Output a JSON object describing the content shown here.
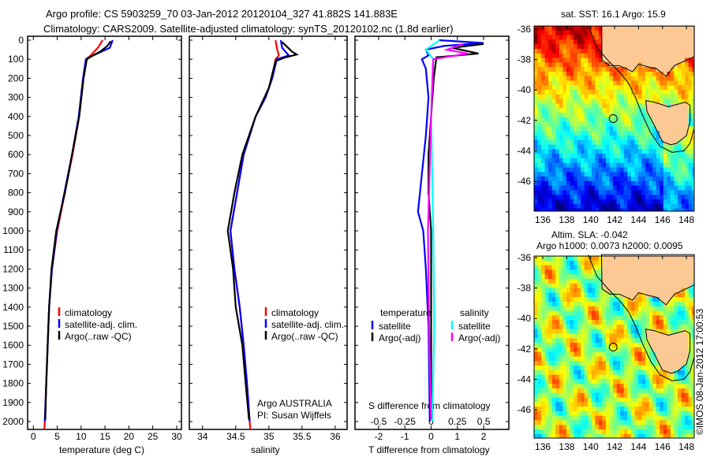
{
  "title": {
    "line1": "Argo profile: CS 5903259_70 03-Jan-2012 20120104_327 41.882S 141.883E",
    "line2": "Climatology: CARS2009. Satellite-adjusted climatology: synTS_20120102.nc (1.8d earlier)"
  },
  "chart_data": [
    {
      "type": "line",
      "name": "temperature-profile",
      "xlabel": "temperature (deg C)",
      "ylabel": "depth",
      "xticks": [
        0,
        5,
        10,
        15,
        20,
        25,
        30
      ],
      "yticks": [
        0,
        100,
        200,
        300,
        400,
        500,
        600,
        700,
        800,
        900,
        1000,
        1100,
        1200,
        1300,
        1400,
        1500,
        1600,
        1700,
        1800,
        1900,
        2000
      ],
      "ylim": [
        2100,
        -20
      ],
      "xlim": [
        -1.2,
        31
      ],
      "legend": [
        "climatology",
        "satellite-adj. clim.",
        "Argo(..raw -QC)"
      ],
      "series": [
        {
          "name": "climatology",
          "color": "#ff0000",
          "points": [
            [
              14.5,
              0
            ],
            [
              13.5,
              40
            ],
            [
              12,
              80
            ],
            [
              11,
              100
            ],
            [
              10.5,
              200
            ],
            [
              9.6,
              400
            ],
            [
              8.2,
              600
            ],
            [
              6.6,
              800
            ],
            [
              5,
              1000
            ],
            [
              3.9,
              1200
            ],
            [
              3.3,
              1400
            ],
            [
              3,
              1600
            ],
            [
              2.7,
              1800
            ],
            [
              2.4,
              2000
            ],
            [
              2.3,
              2060
            ]
          ]
        },
        {
          "name": "satellite-adj. clim.",
          "color": "#0000ff",
          "points": [
            [
              16.6,
              0
            ],
            [
              16,
              40
            ],
            [
              12.5,
              80
            ],
            [
              11,
              100
            ],
            [
              10.4,
              200
            ],
            [
              9.5,
              400
            ],
            [
              8.1,
              600
            ],
            [
              6.5,
              800
            ],
            [
              4.9,
              1000
            ],
            [
              3.9,
              1200
            ],
            [
              3.3,
              1400
            ],
            [
              3,
              1600
            ],
            [
              2.7,
              1800
            ],
            [
              2.4,
              2000
            ]
          ]
        },
        {
          "name": "Argo(..raw -QC)",
          "color": "#000000",
          "points": [
            [
              16.2,
              5
            ],
            [
              15.5,
              30
            ],
            [
              14,
              60
            ],
            [
              12.5,
              80
            ],
            [
              11.2,
              100
            ],
            [
              10.5,
              200
            ],
            [
              9.6,
              400
            ],
            [
              8.1,
              600
            ],
            [
              6.6,
              800
            ],
            [
              4.8,
              1000
            ],
            [
              3.8,
              1200
            ],
            [
              3.3,
              1400
            ],
            [
              3,
              1600
            ],
            [
              2.7,
              1800
            ],
            [
              2.5,
              1990
            ]
          ]
        }
      ]
    },
    {
      "type": "line",
      "name": "salinity-profile",
      "xlabel": "salinity",
      "xticks": [
        34,
        34.5,
        35,
        35.5,
        36
      ],
      "ylim": [
        2100,
        -20
      ],
      "xlim": [
        33.8,
        36.18
      ],
      "legend": [
        "climatology",
        "satellite-adj. clim.",
        "Argo(..raw -QC)"
      ],
      "annotation": [
        "Argo AUSTRALIA",
        "PI: Susan Wijffels"
      ],
      "series": [
        {
          "name": "climatology",
          "color": "#ff0000",
          "points": [
            [
              35.1,
              0
            ],
            [
              35.12,
              40
            ],
            [
              35.15,
              80
            ],
            [
              35.1,
              100
            ],
            [
              35.05,
              200
            ],
            [
              34.95,
              300
            ],
            [
              34.8,
              400
            ],
            [
              34.62,
              600
            ],
            [
              34.52,
              800
            ],
            [
              34.42,
              1000
            ],
            [
              34.48,
              1200
            ],
            [
              34.56,
              1400
            ],
            [
              34.62,
              1600
            ],
            [
              34.67,
              1800
            ],
            [
              34.71,
              2000
            ],
            [
              34.72,
              2060
            ]
          ]
        },
        {
          "name": "satellite-adj. clim.",
          "color": "#0000ff",
          "points": [
            [
              35.18,
              0
            ],
            [
              35.2,
              40
            ],
            [
              35.3,
              80
            ],
            [
              35.12,
              100
            ],
            [
              35.05,
              200
            ],
            [
              34.95,
              300
            ],
            [
              34.8,
              400
            ],
            [
              34.62,
              600
            ],
            [
              34.52,
              800
            ],
            [
              34.42,
              1000
            ],
            [
              34.48,
              1200
            ],
            [
              34.56,
              1400
            ],
            [
              34.62,
              1600
            ],
            [
              34.67,
              1800
            ],
            [
              34.71,
              2000
            ]
          ]
        },
        {
          "name": "Argo(..raw -QC)",
          "color": "#000000",
          "points": [
            [
              35.2,
              10
            ],
            [
              35.35,
              60
            ],
            [
              35.42,
              75
            ],
            [
              35.25,
              90
            ],
            [
              35.1,
              110
            ],
            [
              35.0,
              250
            ],
            [
              34.8,
              400
            ],
            [
              34.6,
              600
            ],
            [
              34.48,
              800
            ],
            [
              34.38,
              1000
            ],
            [
              34.46,
              1200
            ],
            [
              34.5,
              1400
            ],
            [
              34.6,
              1600
            ],
            [
              34.65,
              1800
            ],
            [
              34.7,
              1990
            ]
          ]
        }
      ]
    },
    {
      "type": "line",
      "name": "difference-profile",
      "xlabel": "T difference from climatology",
      "x2label": "S difference from climatology",
      "xticks": [
        -2,
        -1,
        0,
        1,
        2
      ],
      "x2ticks": [
        "-0.5",
        "-0.25",
        "0",
        "0.25",
        "0.5"
      ],
      "xlim": [
        -2.9,
        2.96
      ],
      "x2lim": [
        -0.725,
        0.74
      ],
      "legend": {
        "temperature": "temperature",
        "salinity": "salinity",
        "items": [
          "satellite",
          "Argo(-adj)",
          "satellite",
          "Argo(-adj)"
        ]
      },
      "series": [
        {
          "name": "T satellite",
          "units": "T",
          "color": "#0000ff",
          "points": [
            [
              0.3,
              0
            ],
            [
              2,
              15
            ],
            [
              0.5,
              30
            ],
            [
              -0.2,
              50
            ],
            [
              -0.1,
              80
            ],
            [
              -0.35,
              100
            ],
            [
              -0.2,
              150
            ],
            [
              -0.1,
              300
            ],
            [
              -0.2,
              500
            ],
            [
              -0.35,
              700
            ],
            [
              -0.5,
              900
            ],
            [
              -0.3,
              1000
            ],
            [
              -0.2,
              1200
            ],
            [
              -0.1,
              1500
            ],
            [
              -0.05,
              2000
            ]
          ]
        },
        {
          "name": "T Argo(-adj)",
          "units": "T",
          "color": "#000000",
          "points": [
            [
              2,
              20
            ],
            [
              0.8,
              40
            ],
            [
              1.8,
              70
            ],
            [
              0.2,
              90
            ],
            [
              0.1,
              200
            ],
            [
              0,
              400
            ],
            [
              -0.1,
              600
            ],
            [
              -0.1,
              800
            ],
            [
              0,
              1000
            ],
            [
              0,
              1400
            ],
            [
              0,
              1990
            ]
          ]
        },
        {
          "name": "S satellite",
          "units": "S",
          "color": "#00ffff",
          "points": [
            [
              0.08,
              0
            ],
            [
              -0.05,
              50
            ],
            [
              0.02,
              100
            ],
            [
              0,
              400
            ],
            [
              0.02,
              1000
            ],
            [
              0.03,
              1500
            ],
            [
              0.01,
              2000
            ]
          ]
        },
        {
          "name": "S Argo(-adj)",
          "units": "S",
          "color": "#ff00ff",
          "points": [
            [
              0.3,
              20
            ],
            [
              0.15,
              50
            ],
            [
              0.35,
              70
            ],
            [
              0.02,
              100
            ],
            [
              0,
              400
            ],
            [
              -0.03,
              1000
            ],
            [
              -0.02,
              1500
            ],
            [
              0,
              1990
            ]
          ]
        }
      ]
    },
    {
      "type": "heatmap",
      "name": "sst-map",
      "title": "sat. SST: 16.1 Argo: 15.9",
      "xticks": [
        136,
        138,
        140,
        142,
        144,
        146,
        148
      ],
      "yticks": [
        -36,
        -38,
        -40,
        -42,
        -44,
        -46
      ],
      "marker": [
        141.883,
        -41.882
      ]
    },
    {
      "type": "heatmap",
      "name": "sla-map",
      "title": [
        "Altim. SLA: -0.042",
        "Argo h1000: 0.0073 h2000: 0.0095"
      ],
      "xticks": [
        136,
        138,
        140,
        142,
        144,
        146,
        148
      ],
      "yticks": [
        -36,
        -38,
        -40,
        -42,
        -44,
        -46
      ],
      "marker": [
        141.883,
        -41.882
      ]
    }
  ],
  "credit": "©IMOS 08-Jan-2012 17:00:53",
  "colors": {
    "land": "#fcc994"
  }
}
